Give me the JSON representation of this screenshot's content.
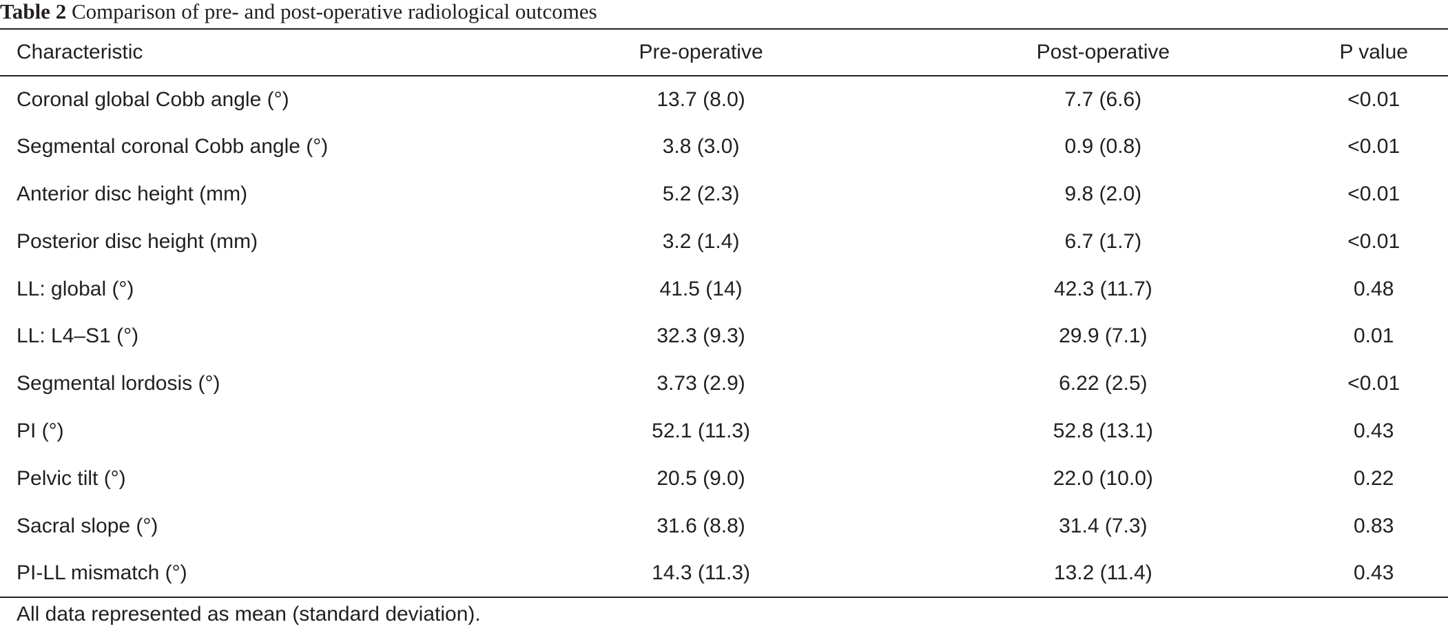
{
  "caption": {
    "label": "Table 2",
    "title": "Comparison of pre- and post-operative radiological outcomes"
  },
  "table": {
    "headers": [
      "Characteristic",
      "Pre-operative",
      "Post-operative",
      "P value"
    ],
    "rows": [
      [
        "Coronal global Cobb angle (°)",
        "13.7 (8.0)",
        "7.7 (6.6)",
        "<0.01"
      ],
      [
        "Segmental coronal Cobb angle (°)",
        "3.8 (3.0)",
        "0.9 (0.8)",
        "<0.01"
      ],
      [
        "Anterior disc height (mm)",
        "5.2 (2.3)",
        "9.8 (2.0)",
        "<0.01"
      ],
      [
        "Posterior disc height (mm)",
        "3.2 (1.4)",
        "6.7 (1.7)",
        "<0.01"
      ],
      [
        "LL: global (°)",
        "41.5 (14)",
        "42.3 (11.7)",
        "0.48"
      ],
      [
        "LL: L4–S1 (°)",
        "32.3 (9.3)",
        "29.9 (7.1)",
        "0.01"
      ],
      [
        "Segmental lordosis (°)",
        "3.73 (2.9)",
        "6.22 (2.5)",
        "<0.01"
      ],
      [
        "PI (°)",
        "52.1 (11.3)",
        "52.8 (13.1)",
        "0.43"
      ],
      [
        "Pelvic tilt (°)",
        "20.5 (9.0)",
        "22.0 (10.0)",
        "0.22"
      ],
      [
        "Sacral slope (°)",
        "31.6 (8.8)",
        "31.4 (7.3)",
        "0.83"
      ],
      [
        "PI-LL mismatch (°)",
        "14.3 (11.3)",
        "13.2 (11.4)",
        "0.43"
      ]
    ]
  },
  "footnote": "All data represented as mean (standard deviation)."
}
